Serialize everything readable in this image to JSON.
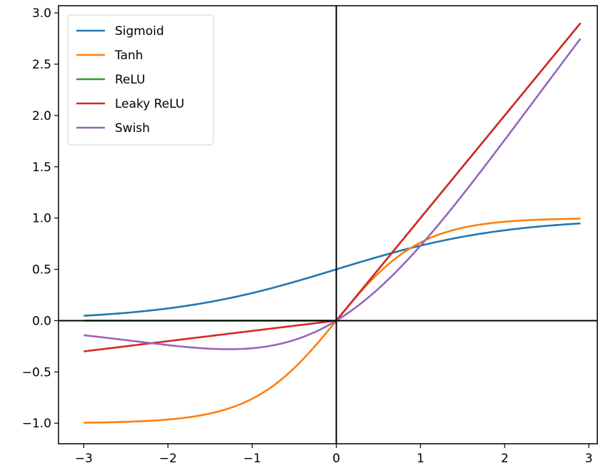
{
  "chart_data": {
    "type": "line",
    "title": "",
    "xlabel": "",
    "ylabel": "",
    "xlim": [
      -3.3,
      3.1
    ],
    "ylim": [
      -1.2,
      3.07
    ],
    "xticks": [
      -3,
      -2,
      -1,
      0,
      1,
      2,
      3
    ],
    "yticks": [
      -1.0,
      -0.5,
      0.0,
      0.5,
      1.0,
      1.5,
      2.0,
      2.5,
      3.0
    ],
    "xtick_labels": [
      "−3",
      "−2",
      "−1",
      "0",
      "1",
      "2",
      "3"
    ],
    "ytick_labels": [
      "−1.0",
      "−0.5",
      "0.0",
      "0.5",
      "1.0",
      "1.5",
      "2.0",
      "2.5",
      "3.0"
    ],
    "grid": false,
    "axes_lines": [
      "x=0",
      "y=0"
    ],
    "legend_placement": "top-left",
    "x": [
      -3.0,
      -2.5,
      -2.0,
      -1.5,
      -1.0,
      -0.5,
      0.0,
      0.5,
      1.0,
      1.5,
      2.0,
      2.5,
      2.9
    ],
    "series": [
      {
        "name": "Sigmoid",
        "color": "#1f77b4",
        "values": [
          0.047,
          0.076,
          0.119,
          0.182,
          0.269,
          0.378,
          0.5,
          0.622,
          0.731,
          0.818,
          0.881,
          0.924,
          0.948
        ]
      },
      {
        "name": "Tanh",
        "color": "#ff7f0e",
        "values": [
          -0.995,
          -0.987,
          -0.964,
          -0.905,
          -0.762,
          -0.462,
          0.0,
          0.462,
          0.762,
          0.905,
          0.964,
          0.987,
          0.994
        ]
      },
      {
        "name": "ReLU",
        "color": "#2ca02c",
        "values": [
          0.0,
          0.0,
          0.0,
          0.0,
          0.0,
          0.0,
          0.0,
          0.5,
          1.0,
          1.5,
          2.0,
          2.5,
          2.9
        ]
      },
      {
        "name": "Leaky ReLU",
        "color": "#d62728",
        "values": [
          -0.3,
          -0.25,
          -0.2,
          -0.15,
          -0.1,
          -0.05,
          0.0,
          0.5,
          1.0,
          1.5,
          2.0,
          2.5,
          2.9
        ]
      },
      {
        "name": "Swish",
        "color": "#9467bd",
        "values": [
          -0.142,
          -0.19,
          -0.238,
          -0.273,
          -0.269,
          -0.189,
          0.0,
          0.311,
          0.731,
          1.227,
          1.762,
          2.311,
          2.749
        ]
      }
    ]
  }
}
